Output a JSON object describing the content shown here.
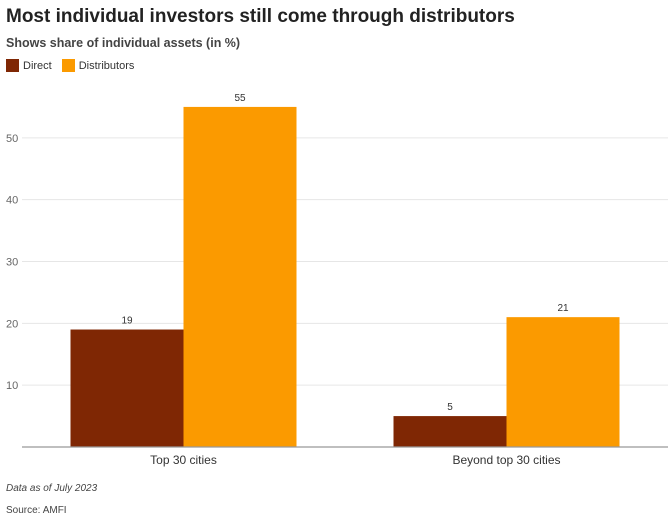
{
  "chart_data": {
    "type": "bar",
    "title": "Most individual investors still come through distributors",
    "subtitle": "Shows share of individual assets (in %)",
    "categories": [
      "Top 30 cities",
      "Beyond top 30 cities"
    ],
    "series": [
      {
        "name": "Direct",
        "values": [
          19,
          5
        ],
        "color": "#7f2704"
      },
      {
        "name": "Distributors",
        "values": [
          55,
          21
        ],
        "color": "#fb9a00"
      }
    ],
    "yticks": [
      10,
      20,
      30,
      40,
      50
    ],
    "ylim": [
      0,
      60
    ],
    "grid": true,
    "legend_position": "top-left",
    "note": "Data as of July 2023",
    "source": "Source: AMFI"
  }
}
